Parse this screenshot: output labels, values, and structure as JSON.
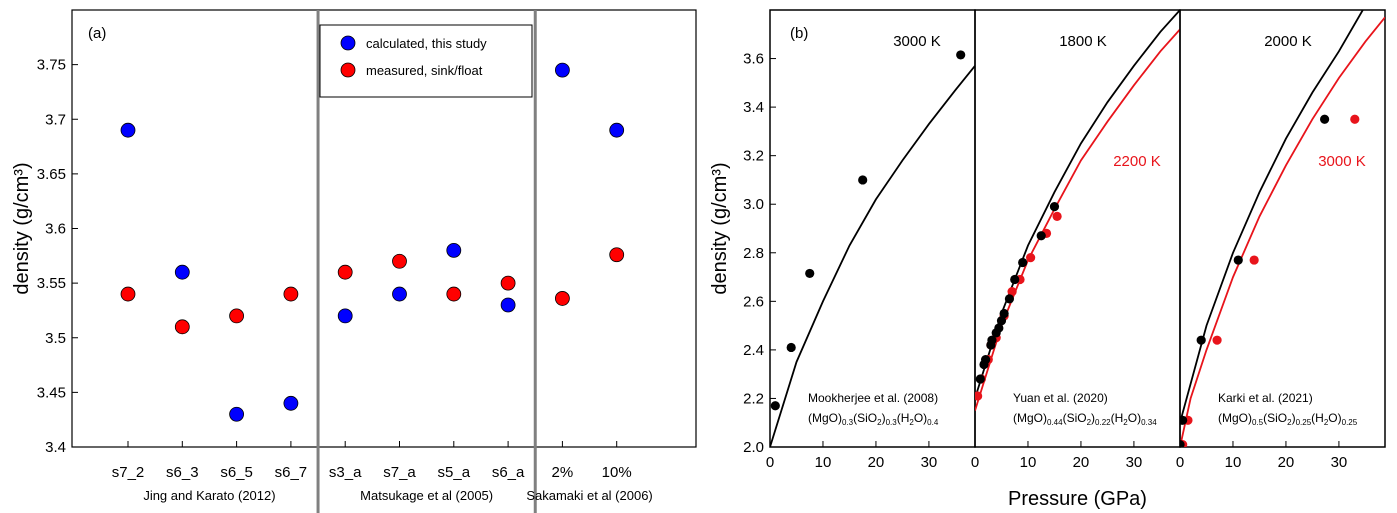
{
  "chart_data": [
    {
      "type": "scatter",
      "label": "(a)",
      "y_label": "density (g/cm³)",
      "groups": [
        {
          "name": "Jing and Karato (2012)",
          "categories": [
            "s7_2",
            "s6_3",
            "s6_5",
            "s6_7"
          ]
        },
        {
          "name": "Matsukage et al (2005)",
          "categories": [
            "s3_a",
            "s7_a",
            "s5_a",
            "s6_a"
          ]
        },
        {
          "name": "Sakamaki et al (2006)",
          "categories": [
            "2%",
            "10%"
          ]
        }
      ],
      "series": [
        {
          "name": "calculated, this study",
          "color": "#0000ff",
          "values": [
            3.69,
            3.56,
            3.43,
            3.44,
            3.52,
            3.54,
            3.58,
            3.53,
            3.745,
            3.69
          ]
        },
        {
          "name": "measured, sink/float",
          "color": "#ff0000",
          "values": [
            3.54,
            3.51,
            3.52,
            3.54,
            3.56,
            3.57,
            3.54,
            3.55,
            3.536,
            3.576
          ]
        }
      ],
      "ylim": [
        3.4,
        3.8
      ],
      "yticks": [
        3.4,
        3.45,
        3.5,
        3.55,
        3.6,
        3.65,
        3.7,
        3.75
      ],
      "legend": "upper center"
    },
    {
      "type": "line",
      "label": "(b)",
      "y_label": "density (g/cm³)",
      "xlim": [
        0,
        38.7
      ],
      "xticks": [
        0,
        10,
        20,
        30
      ],
      "ylim": [
        2.0,
        3.8
      ],
      "yticks": [
        {
          "value": 2.0,
          "label": "2.0"
        },
        {
          "value": 2.2,
          "label": "2.2"
        },
        {
          "value": 2.4,
          "label": "2.4"
        },
        {
          "value": 2.6,
          "label": "2.6"
        },
        {
          "value": 2.8,
          "label": "2.8"
        },
        {
          "value": 3.0,
          "label": "3.0"
        },
        {
          "value": 3.2,
          "label": "3.2"
        },
        {
          "value": 3.4,
          "label": "3.4"
        },
        {
          "value": 3.6,
          "label": "3.6"
        }
      ],
      "source": "Mookherjee et al. (2008)",
      "formula": [
        "(MgO)",
        "0.3",
        "(SiO",
        "2",
        ")",
        "0.3",
        "(H",
        "2",
        "O)",
        "0.4"
      ],
      "series": [
        {
          "name": "3000 K",
          "kind": "line",
          "color": "#000000",
          "x": [
            0,
            5,
            10,
            15,
            20,
            25,
            30,
            35,
            38.7
          ],
          "values": [
            2.0,
            2.35,
            2.6,
            2.83,
            3.02,
            3.18,
            3.33,
            3.47,
            3.57
          ]
        },
        {
          "kind": "markers",
          "color": "#000000",
          "x": [
            1,
            4,
            7.5,
            17.5,
            36
          ],
          "values": [
            2.17,
            2.41,
            2.715,
            3.1,
            3.615
          ]
        }
      ]
    },
    {
      "type": "line",
      "x_label": "Pressure (GPa)",
      "xlim": [
        0,
        38.7
      ],
      "xticks": [
        0,
        10,
        20,
        30
      ],
      "ylim": [
        2.0,
        3.8
      ],
      "source": "Yuan et al. (2020)",
      "formula": [
        "(MgO)",
        "0.44",
        "(SiO",
        "2",
        ")",
        "0.22",
        "(H",
        "2",
        "O)",
        "0.34"
      ],
      "series": [
        {
          "name": "1800 K",
          "kind": "line",
          "color": "#000000",
          "x": [
            0,
            5,
            10,
            15,
            20,
            25,
            30,
            35,
            38.7
          ],
          "values": [
            2.2,
            2.55,
            2.83,
            3.05,
            3.25,
            3.42,
            3.57,
            3.71,
            3.8
          ]
        },
        {
          "name": "2200 K",
          "kind": "line",
          "color": "#e8141b",
          "x": [
            0,
            5,
            10,
            15,
            20,
            25,
            30,
            35,
            38.7
          ],
          "values": [
            2.15,
            2.5,
            2.77,
            2.98,
            3.18,
            3.34,
            3.49,
            3.63,
            3.72
          ]
        },
        {
          "kind": "markers",
          "color": "#e8141b",
          "x": [
            0.5,
            1.2,
            2.5,
            3,
            4,
            5.5,
            7,
            8.5,
            10.5,
            13.5,
            15.5
          ],
          "values": [
            2.21,
            2.28,
            2.36,
            2.42,
            2.45,
            2.54,
            2.64,
            2.69,
            2.78,
            2.88,
            2.95
          ]
        },
        {
          "kind": "markers",
          "color": "#000000",
          "x": [
            1,
            1.7,
            2,
            3,
            3.2,
            4,
            4.5,
            5,
            5.5,
            6.5,
            7.5,
            9,
            12.5,
            15
          ],
          "values": [
            2.28,
            2.34,
            2.36,
            2.42,
            2.44,
            2.47,
            2.49,
            2.52,
            2.55,
            2.61,
            2.69,
            2.76,
            2.87,
            2.99
          ]
        }
      ]
    },
    {
      "type": "line",
      "xlim": [
        0,
        38.7
      ],
      "xticks": [
        0,
        10,
        20,
        30
      ],
      "ylim": [
        2.0,
        3.8
      ],
      "source": "Karki et al. (2021)",
      "formula": [
        "(MgO)",
        "0.5",
        "(SiO",
        "2",
        ")",
        "0.25",
        "(H",
        "2",
        "O)",
        "0.25"
      ],
      "series": [
        {
          "name": "2000 K",
          "kind": "line",
          "color": "#000000",
          "x": [
            0,
            5,
            10,
            15,
            20,
            25,
            30,
            34.5
          ],
          "values": [
            2.1,
            2.5,
            2.8,
            3.05,
            3.27,
            3.46,
            3.63,
            3.8
          ]
        },
        {
          "name": "3000 K",
          "kind": "line",
          "color": "#e8141b",
          "x": [
            0,
            2,
            5,
            10,
            15,
            20,
            25,
            30,
            35,
            38.7
          ],
          "values": [
            2.0,
            2.2,
            2.4,
            2.7,
            2.95,
            3.16,
            3.35,
            3.52,
            3.67,
            3.77
          ]
        },
        {
          "kind": "markers",
          "color": "#e8141b",
          "x": [
            0.5,
            1.5,
            7,
            14,
            33
          ],
          "values": [
            2.01,
            2.11,
            2.44,
            2.77,
            3.35
          ]
        },
        {
          "kind": "markers",
          "color": "#000000",
          "x": [
            0,
            0.5,
            4,
            11,
            27.3
          ],
          "values": [
            2.01,
            2.11,
            2.44,
            2.77,
            3.35
          ]
        }
      ]
    }
  ]
}
